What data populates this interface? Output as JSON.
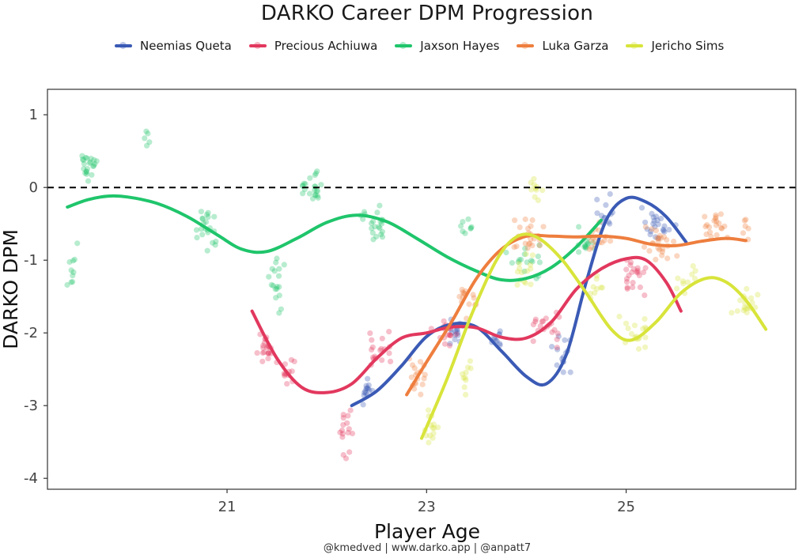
{
  "title": "DARKO Career DPM Progression",
  "credit": "@kmedved | www.darko.app | @anpatt7",
  "chart_data": {
    "type": "scatter",
    "title": "DARKO Career DPM Progression",
    "xlabel": "Player Age",
    "ylabel": "DARKO DPM",
    "xlim": [
      19.2,
      26.7
    ],
    "ylim": [
      -4.15,
      1.35
    ],
    "xticks": [
      21,
      23,
      25
    ],
    "yticks": [
      1,
      0,
      -1,
      -2,
      -3,
      -4
    ],
    "xtick_labels": [
      "21",
      "23",
      "25"
    ],
    "ytick_labels": [
      "1",
      "0",
      "-1",
      "-2",
      "-3",
      "-4"
    ],
    "reference_line": {
      "y": 0,
      "style": "dashed"
    },
    "grid": false,
    "legend_position": "top",
    "series": [
      {
        "name": "Neemias Queta",
        "color": "#3a5ab5",
        "trend": [
          [
            22.25,
            -3.0
          ],
          [
            22.5,
            -2.8
          ],
          [
            22.75,
            -2.45
          ],
          [
            23.0,
            -2.05
          ],
          [
            23.25,
            -1.88
          ],
          [
            23.5,
            -1.92
          ],
          [
            23.75,
            -2.25
          ],
          [
            24.0,
            -2.6
          ],
          [
            24.2,
            -2.7
          ],
          [
            24.4,
            -2.3
          ],
          [
            24.6,
            -1.3
          ],
          [
            24.8,
            -0.45
          ],
          [
            25.0,
            -0.15
          ],
          [
            25.2,
            -0.2
          ],
          [
            25.4,
            -0.4
          ],
          [
            25.6,
            -0.75
          ]
        ],
        "clusters": [
          [
            22.4,
            -2.8,
            0.12,
            0.3,
            14
          ],
          [
            23.3,
            -2.0,
            0.18,
            0.25,
            16
          ],
          [
            23.7,
            -2.1,
            0.12,
            0.25,
            10
          ],
          [
            24.35,
            -2.3,
            0.15,
            0.35,
            14
          ],
          [
            24.8,
            -0.3,
            0.12,
            0.3,
            12
          ],
          [
            25.3,
            -0.5,
            0.22,
            0.35,
            22
          ]
        ]
      },
      {
        "name": "Precious Achiuwa",
        "color": "#e2385e",
        "trend": [
          [
            21.25,
            -1.7
          ],
          [
            21.5,
            -2.35
          ],
          [
            21.75,
            -2.75
          ],
          [
            22.0,
            -2.82
          ],
          [
            22.25,
            -2.7
          ],
          [
            22.5,
            -2.35
          ],
          [
            22.75,
            -2.07
          ],
          [
            23.0,
            -2.0
          ],
          [
            23.25,
            -1.92
          ],
          [
            23.5,
            -1.93
          ],
          [
            23.75,
            -2.06
          ],
          [
            24.0,
            -2.07
          ],
          [
            24.25,
            -1.85
          ],
          [
            24.5,
            -1.4
          ],
          [
            24.75,
            -1.12
          ],
          [
            25.0,
            -0.98
          ],
          [
            25.2,
            -1.0
          ],
          [
            25.4,
            -1.3
          ],
          [
            25.55,
            -1.7
          ]
        ],
        "clusters": [
          [
            21.4,
            -2.3,
            0.15,
            0.35,
            22
          ],
          [
            21.6,
            -2.5,
            0.1,
            0.25,
            12
          ],
          [
            22.2,
            -3.3,
            0.12,
            0.45,
            16
          ],
          [
            22.5,
            -2.2,
            0.18,
            0.35,
            18
          ],
          [
            23.2,
            -2.0,
            0.2,
            0.3,
            18
          ],
          [
            24.2,
            -1.9,
            0.22,
            0.35,
            20
          ],
          [
            25.1,
            -1.2,
            0.25,
            0.35,
            22
          ]
        ]
      },
      {
        "name": "Jaxson Hayes",
        "color": "#1fc56b",
        "trend": [
          [
            19.4,
            -0.27
          ],
          [
            19.6,
            -0.17
          ],
          [
            19.8,
            -0.12
          ],
          [
            20.0,
            -0.13
          ],
          [
            20.3,
            -0.22
          ],
          [
            20.6,
            -0.4
          ],
          [
            20.9,
            -0.65
          ],
          [
            21.15,
            -0.85
          ],
          [
            21.4,
            -0.88
          ],
          [
            21.7,
            -0.7
          ],
          [
            22.0,
            -0.48
          ],
          [
            22.3,
            -0.38
          ],
          [
            22.6,
            -0.47
          ],
          [
            22.9,
            -0.7
          ],
          [
            23.2,
            -0.95
          ],
          [
            23.5,
            -1.15
          ],
          [
            23.75,
            -1.27
          ],
          [
            24.0,
            -1.25
          ],
          [
            24.25,
            -1.1
          ],
          [
            24.5,
            -0.82
          ],
          [
            24.75,
            -0.45
          ]
        ],
        "clusters": [
          [
            19.6,
            0.3,
            0.12,
            0.35,
            22
          ],
          [
            19.45,
            -1.2,
            0.06,
            0.9,
            10
          ],
          [
            20.2,
            0.7,
            0.05,
            0.3,
            5
          ],
          [
            20.8,
            -0.55,
            0.15,
            0.45,
            22
          ],
          [
            21.5,
            -1.3,
            0.12,
            0.6,
            18
          ],
          [
            21.85,
            0.0,
            0.15,
            0.3,
            22
          ],
          [
            22.5,
            -0.5,
            0.2,
            0.35,
            22
          ],
          [
            23.4,
            -0.6,
            0.1,
            0.3,
            8
          ],
          [
            24.0,
            -1.0,
            0.25,
            0.3,
            16
          ],
          [
            24.6,
            -0.8,
            0.15,
            0.3,
            14
          ]
        ]
      },
      {
        "name": "Luka Garza",
        "color": "#ee7e3e",
        "trend": [
          [
            22.8,
            -2.85
          ],
          [
            23.0,
            -2.4
          ],
          [
            23.25,
            -1.85
          ],
          [
            23.5,
            -1.25
          ],
          [
            23.75,
            -0.85
          ],
          [
            24.0,
            -0.67
          ],
          [
            24.25,
            -0.67
          ],
          [
            24.5,
            -0.68
          ],
          [
            24.75,
            -0.67
          ],
          [
            25.0,
            -0.7
          ],
          [
            25.25,
            -0.78
          ],
          [
            25.5,
            -0.8
          ],
          [
            25.75,
            -0.74
          ],
          [
            26.0,
            -0.7
          ],
          [
            26.2,
            -0.73
          ]
        ],
        "clusters": [
          [
            22.9,
            -2.6,
            0.15,
            0.4,
            18
          ],
          [
            23.4,
            -1.6,
            0.15,
            0.4,
            14
          ],
          [
            24.0,
            -0.7,
            0.25,
            0.35,
            24
          ],
          [
            24.7,
            -0.7,
            0.2,
            0.3,
            16
          ],
          [
            25.3,
            -0.8,
            0.25,
            0.35,
            24
          ],
          [
            25.9,
            -0.5,
            0.2,
            0.35,
            20
          ],
          [
            26.2,
            -0.6,
            0.06,
            0.3,
            6
          ]
        ]
      },
      {
        "name": "Jericho Sims",
        "color": "#d8e43a",
        "trend": [
          [
            22.95,
            -3.45
          ],
          [
            23.2,
            -2.65
          ],
          [
            23.45,
            -1.75
          ],
          [
            23.7,
            -1.0
          ],
          [
            23.9,
            -0.68
          ],
          [
            24.1,
            -0.68
          ],
          [
            24.35,
            -0.98
          ],
          [
            24.6,
            -1.45
          ],
          [
            24.85,
            -1.95
          ],
          [
            25.05,
            -2.1
          ],
          [
            25.3,
            -1.85
          ],
          [
            25.55,
            -1.45
          ],
          [
            25.8,
            -1.25
          ],
          [
            26.0,
            -1.3
          ],
          [
            26.2,
            -1.55
          ],
          [
            26.4,
            -1.95
          ]
        ],
        "clusters": [
          [
            23.05,
            -3.3,
            0.1,
            0.35,
            14
          ],
          [
            23.4,
            -2.6,
            0.12,
            0.4,
            10
          ],
          [
            24.1,
            0.0,
            0.1,
            0.35,
            10
          ],
          [
            24.0,
            -1.2,
            0.2,
            0.4,
            14
          ],
          [
            24.7,
            -1.4,
            0.15,
            0.3,
            10
          ],
          [
            25.1,
            -2.0,
            0.2,
            0.4,
            18
          ],
          [
            25.6,
            -1.3,
            0.15,
            0.3,
            10
          ],
          [
            26.2,
            -1.6,
            0.18,
            0.3,
            18
          ]
        ]
      }
    ]
  }
}
